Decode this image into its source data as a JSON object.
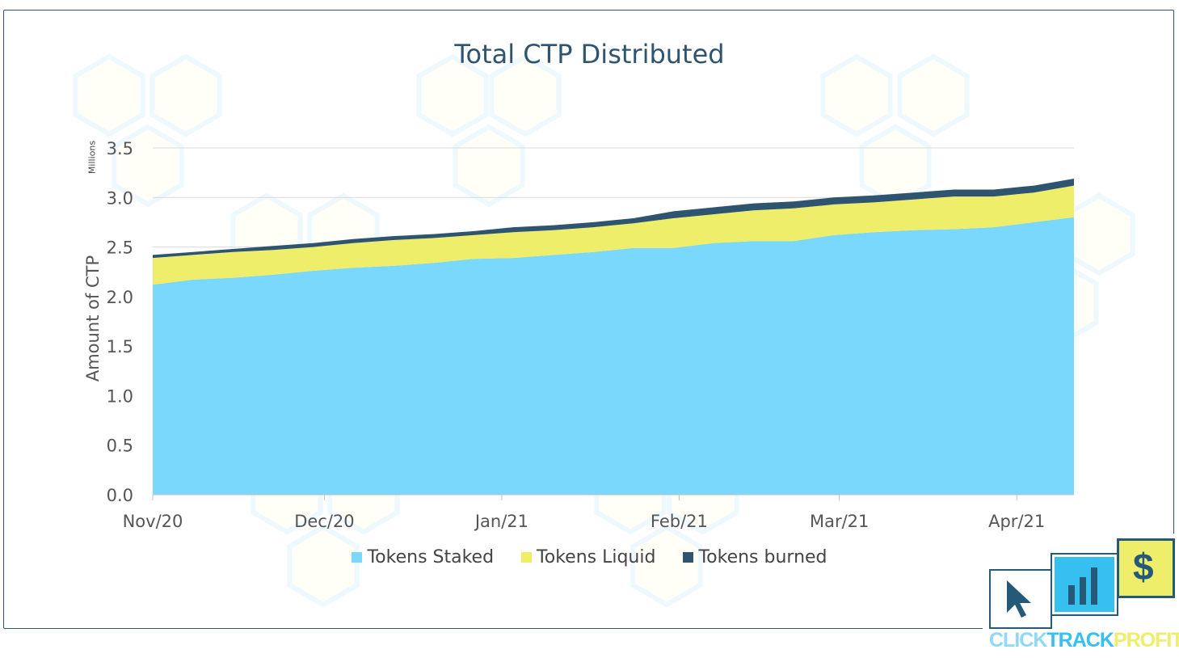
{
  "chart_data": {
    "type": "area",
    "stacked": true,
    "title": "Total CTP Distributed",
    "ylabel": "Amount of CTP",
    "yunits": "Millions",
    "xlabel": "",
    "ylim": [
      0,
      3.5
    ],
    "yticks": [
      "0.0",
      "0.5",
      "1.0",
      "1.5",
      "2.0",
      "2.5",
      "3.0",
      "3.5"
    ],
    "xticks": [
      "Nov/20",
      "Dec/20",
      "Jan/21",
      "Feb/21",
      "Mar/21",
      "Apr/21"
    ],
    "x": [
      "2020-11-01",
      "2020-11-08",
      "2020-11-15",
      "2020-11-22",
      "2020-11-29",
      "2020-12-06",
      "2020-12-13",
      "2020-12-20",
      "2020-12-27",
      "2021-01-03",
      "2021-01-10",
      "2021-01-17",
      "2021-01-24",
      "2021-01-31",
      "2021-02-07",
      "2021-02-14",
      "2021-02-21",
      "2021-02-28",
      "2021-03-07",
      "2021-03-14",
      "2021-03-21",
      "2021-03-28",
      "2021-04-04",
      "2021-04-11"
    ],
    "series": [
      {
        "name": "Tokens Staked",
        "color": "#79d8fb",
        "values": [
          2.12,
          2.17,
          2.19,
          2.22,
          2.26,
          2.29,
          2.31,
          2.34,
          2.38,
          2.39,
          2.42,
          2.45,
          2.49,
          2.49,
          2.54,
          2.56,
          2.56,
          2.62,
          2.65,
          2.67,
          2.68,
          2.7,
          2.75,
          2.8
        ]
      },
      {
        "name": "Tokens Liquid",
        "color": "#eeee6a",
        "values": [
          0.27,
          0.25,
          0.26,
          0.25,
          0.24,
          0.25,
          0.26,
          0.25,
          0.24,
          0.26,
          0.25,
          0.25,
          0.25,
          0.3,
          0.29,
          0.31,
          0.33,
          0.31,
          0.3,
          0.31,
          0.33,
          0.31,
          0.3,
          0.32
        ]
      },
      {
        "name": "Tokens burned",
        "color": "#2f5470",
        "values": [
          0.03,
          0.03,
          0.03,
          0.04,
          0.04,
          0.04,
          0.04,
          0.04,
          0.04,
          0.05,
          0.05,
          0.05,
          0.05,
          0.07,
          0.07,
          0.07,
          0.07,
          0.07,
          0.07,
          0.07,
          0.07,
          0.07,
          0.07,
          0.07
        ]
      }
    ],
    "grid": true,
    "legend_position": "bottom"
  },
  "logo": {
    "text_click": "CLICK",
    "text_track": "TRACK",
    "text_profit": "PROFIT",
    "dollar": "$",
    "color_dark": "#245a78",
    "color_cyan": "#36c0f0",
    "color_yellow": "#eeee6a"
  }
}
